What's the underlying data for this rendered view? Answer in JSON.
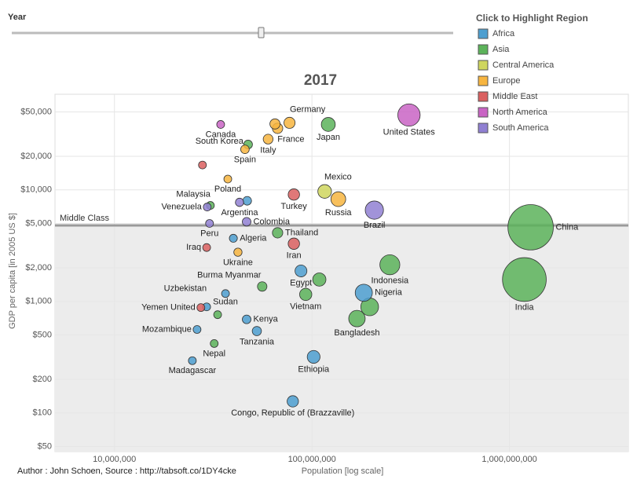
{
  "controls": {
    "slider_label": "Year"
  },
  "legend_title": "Click to Highlight Region",
  "footer": "Author : John Schoen, Source : http://tabsoft.co/1DY4cke",
  "chart_data": {
    "type": "scatter",
    "title": "2017",
    "x_label": "Population [log scale]",
    "y_label": "GDP per capita [in 2005 US $]",
    "xscale": "log",
    "yscale": "log",
    "grid": true,
    "xlim": [
      5000000,
      4000000000
    ],
    "ylim": [
      45,
      72000
    ],
    "xticks": [
      {
        "value": 10000000,
        "label": "10,000,000"
      },
      {
        "value": 100000000,
        "label": "100,000,000"
      },
      {
        "value": 1000000000,
        "label": "1,000,000,000"
      }
    ],
    "yticks": [
      {
        "value": 50000,
        "label": "$50,000"
      },
      {
        "value": 20000,
        "label": "$20,000"
      },
      {
        "value": 10000,
        "label": "$10,000"
      },
      {
        "value": 5000,
        "label": "$5,000"
      },
      {
        "value": 2000,
        "label": "$2,000"
      },
      {
        "value": 1000,
        "label": "$1,000"
      },
      {
        "value": 500,
        "label": "$500"
      },
      {
        "value": 200,
        "label": "$200"
      },
      {
        "value": 100,
        "label": "$100"
      },
      {
        "value": 50,
        "label": "$50"
      }
    ],
    "reference_line": {
      "label": "Middle Class",
      "value": 4800
    },
    "series": [
      {
        "name": "Africa",
        "color": "#4e9fd0",
        "labels": [
          "Egypt",
          "Nigeria",
          "Ethiopia",
          "Congo, Republic of (Brazzaville)",
          "Kenya",
          "Tanzania",
          "Algeria",
          "Sudan",
          "Madagascar",
          "Mozambique",
          null,
          null
        ],
        "x": [
          88000000,
          183000000,
          102000000,
          80000000,
          46700000,
          52600000,
          40000000,
          29300000,
          24800000,
          26200000,
          36500000,
          47000000
        ],
        "y": [
          1875,
          1195,
          318,
          127,
          690,
          542,
          3680,
          893,
          294,
          560,
          1175,
          7980
        ]
      },
      {
        "name": "Asia",
        "color": "#5cb35a",
        "labels": [
          "China",
          "India",
          "Japan",
          "Indonesia",
          "Bangladesh",
          null,
          "Vietnam",
          null,
          "Thailand",
          "South Korea",
          "Malaysia",
          "Uzbekistan",
          "Nepal",
          "Burma Myanmar"
        ],
        "x": [
          1280000000,
          1190000000,
          121000000,
          248000000,
          169000000,
          196000000,
          93000000,
          109000000,
          67000000,
          47500000,
          30600000,
          33300000,
          32000000,
          56000000
        ],
        "y": [
          4620,
          1570,
          38600,
          2130,
          701,
          893,
          1155,
          1570,
          4120,
          25500,
          7250,
          760,
          419,
          1360
        ]
      },
      {
        "name": "Central America",
        "color": "#cfd65e",
        "labels": [
          "Mexico"
        ],
        "x": [
          116000000
        ],
        "y": [
          9680
        ]
      },
      {
        "name": "Europe",
        "color": "#f7b540",
        "labels": [
          "Germany",
          null,
          "France",
          "Italy",
          "Spain",
          "Poland",
          "Russia",
          "Ukraine"
        ],
        "x": [
          77000000,
          65000000,
          67000000,
          60000000,
          45800000,
          37500000,
          136000000,
          42200000
        ],
        "y": [
          39900,
          39000,
          35600,
          28500,
          23100,
          12500,
          8250,
          2760
        ]
      },
      {
        "name": "Middle East",
        "color": "#da6060",
        "labels": [
          "Iraq",
          "Iran",
          "Turkey",
          "Yemen United",
          null
        ],
        "x": [
          29300000,
          81000000,
          81000000,
          27400000,
          27900000
        ],
        "y": [
          3040,
          3290,
          9080,
          880,
          16700
        ]
      },
      {
        "name": "North America",
        "color": "#c964c4",
        "labels": [
          "United States",
          "Canada"
        ],
        "x": [
          310000000,
          34500000
        ],
        "y": [
          46900,
          38600
        ]
      },
      {
        "name": "South America",
        "color": "#9080d2",
        "labels": [
          "Brazil",
          "Argentina",
          "Colombia",
          "Venezuela",
          "Peru"
        ],
        "x": [
          207000000,
          43000000,
          46700000,
          29500000,
          30300000
        ],
        "y": [
          6580,
          7730,
          5170,
          7020,
          5000
        ]
      }
    ]
  }
}
